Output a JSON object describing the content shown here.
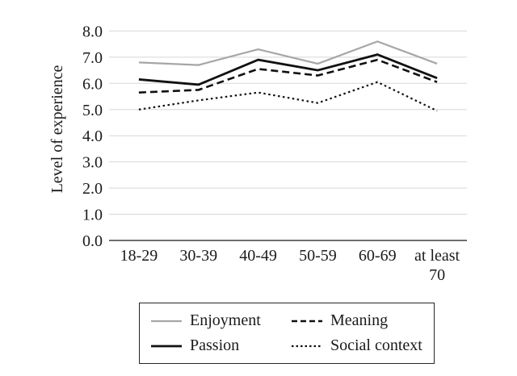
{
  "chart_data": {
    "type": "line",
    "title": "",
    "xlabel": "",
    "ylabel": "Level of experience",
    "categories": [
      "18-29",
      "30-39",
      "40-49",
      "50-59",
      "60-69",
      "at least\n70"
    ],
    "y_ticks": [
      "0.0",
      "1.0",
      "2.0",
      "3.0",
      "4.0",
      "5.0",
      "6.0",
      "7.0",
      "8.0"
    ],
    "ylim": [
      0,
      8
    ],
    "grid": true,
    "legend_position": "bottom",
    "series": [
      {
        "name": "Enjoyment",
        "line_style": "solid",
        "color": "#a6a6a6",
        "values": [
          6.8,
          6.7,
          7.3,
          6.75,
          7.6,
          6.75
        ]
      },
      {
        "name": "Meaning",
        "line_style": "dashed",
        "color": "#111111",
        "values": [
          5.65,
          5.75,
          6.55,
          6.3,
          6.9,
          6.05
        ]
      },
      {
        "name": "Passion",
        "line_style": "solid",
        "color": "#111111",
        "values": [
          6.15,
          5.95,
          6.9,
          6.5,
          7.1,
          6.2
        ]
      },
      {
        "name": "Social context",
        "line_style": "dotted",
        "color": "#111111",
        "values": [
          5.0,
          5.35,
          5.65,
          5.25,
          6.05,
          4.95
        ]
      }
    ],
    "colors": {
      "gridline": "#d7d7d7",
      "axis": "#3f3f3f",
      "text": "#1a1a1a",
      "legend_border": "#262626",
      "background": "#ffffff"
    }
  }
}
